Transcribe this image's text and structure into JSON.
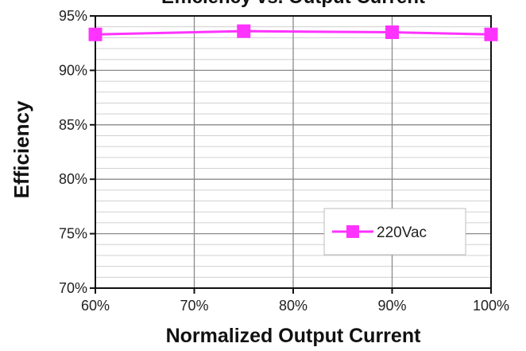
{
  "chart_data": {
    "type": "line",
    "title": "Efficiency vs. Output Current",
    "xlabel": "Normalized Output Current",
    "ylabel": "Efficiency",
    "x": [
      0.6,
      0.75,
      0.9,
      1.0
    ],
    "x_ticks": [
      0.6,
      0.7,
      0.8,
      0.9,
      1.0
    ],
    "x_tick_labels": [
      "60%",
      "70%",
      "80%",
      "90%",
      "100%"
    ],
    "xlim": [
      0.6,
      1.0
    ],
    "y_ticks": [
      70,
      75,
      80,
      85,
      90,
      95
    ],
    "y_tick_labels": [
      "70%",
      "75%",
      "80%",
      "85%",
      "90%",
      "95%"
    ],
    "ylim": [
      70,
      95
    ],
    "grid": true,
    "legend_position": "bottom-right",
    "series": [
      {
        "name": "220Vac",
        "values": [
          93.3,
          93.6,
          93.5,
          93.3
        ],
        "color": "#ff33ff",
        "marker": "square"
      }
    ]
  }
}
